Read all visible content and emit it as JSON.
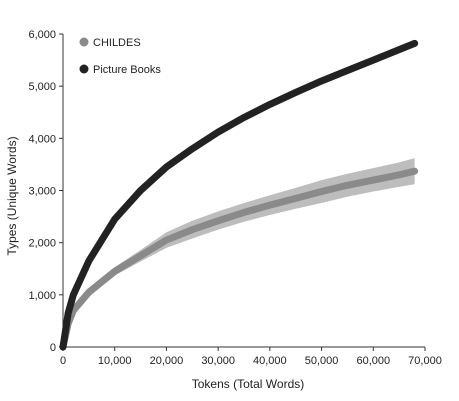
{
  "chart_data": {
    "type": "line",
    "title": "",
    "xlabel": "Tokens (Total Words)",
    "ylabel": "Types (Unique Words)",
    "xlim": [
      0,
      70000
    ],
    "ylim": [
      0,
      6000
    ],
    "xticks": [
      0,
      10000,
      20000,
      30000,
      40000,
      50000,
      60000,
      70000
    ],
    "xtick_labels": [
      "0",
      "10,000",
      "20,000",
      "30,000",
      "40,000",
      "50,000",
      "60,000",
      "70,000"
    ],
    "yticks": [
      0,
      1000,
      2000,
      3000,
      4000,
      5000,
      6000
    ],
    "ytick_labels": [
      "0",
      "1,000",
      "2,000",
      "3,000",
      "4,000",
      "5,000",
      "6,000"
    ],
    "grid": false,
    "legend": "top-left",
    "series": [
      {
        "name": "CHILDES",
        "color": "#8a8a8a",
        "band_color": "#bdbdbd",
        "x": [
          0,
          1000,
          2000,
          5000,
          10000,
          15000,
          20000,
          25000,
          30000,
          35000,
          40000,
          45000,
          50000,
          55000,
          60000,
          65000,
          68000
        ],
        "y": [
          0,
          450,
          700,
          1050,
          1450,
          1750,
          2050,
          2250,
          2420,
          2580,
          2720,
          2850,
          2980,
          3100,
          3200,
          3300,
          3370
        ],
        "lower": [
          0,
          420,
          650,
          980,
          1370,
          1640,
          1900,
          2080,
          2250,
          2400,
          2530,
          2650,
          2760,
          2880,
          2980,
          3070,
          3120
        ],
        "upper": [
          0,
          480,
          750,
          1120,
          1530,
          1860,
          2200,
          2420,
          2600,
          2760,
          2910,
          3050,
          3200,
          3320,
          3430,
          3540,
          3620
        ]
      },
      {
        "name": "Picture Books",
        "color": "#222222",
        "x": [
          0,
          1000,
          2000,
          5000,
          10000,
          15000,
          20000,
          25000,
          30000,
          35000,
          40000,
          45000,
          50000,
          55000,
          60000,
          65000,
          68000
        ],
        "y": [
          0,
          650,
          1000,
          1650,
          2450,
          3000,
          3450,
          3800,
          4120,
          4400,
          4650,
          4880,
          5100,
          5300,
          5500,
          5700,
          5820
        ]
      }
    ]
  }
}
